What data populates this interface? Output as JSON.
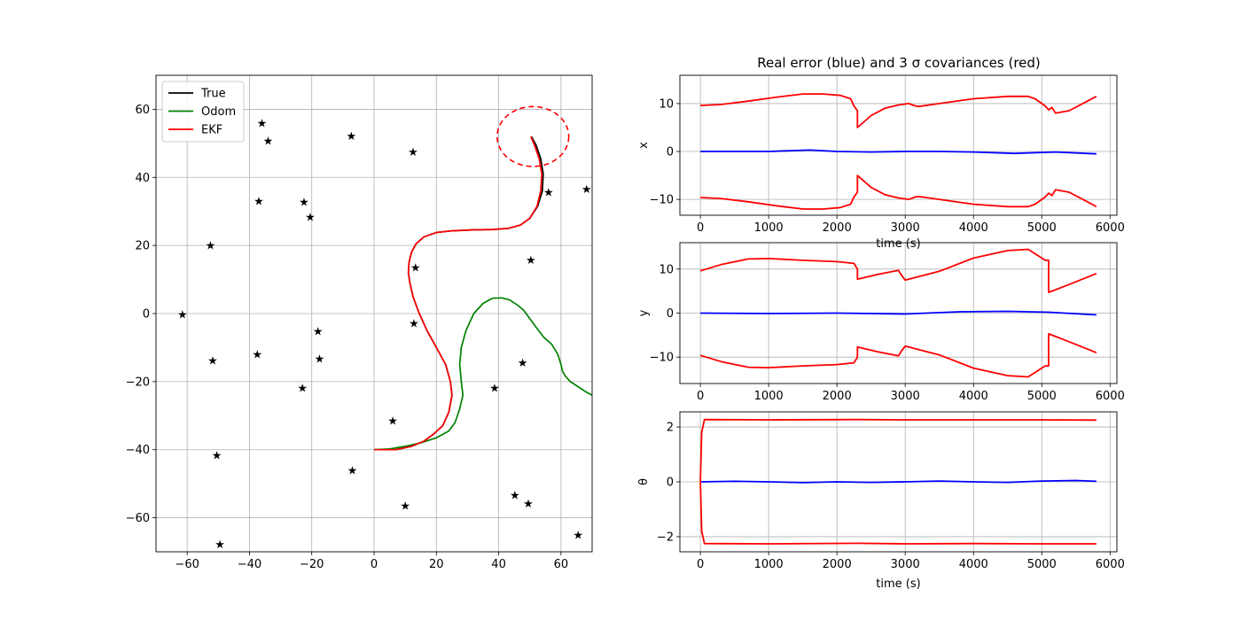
{
  "figure_title": "Real error (blue) and 3 σ covariances (red)",
  "colors": {
    "true": "#000000",
    "odom": "#008000",
    "ekf": "#ff0000",
    "error": "#0000ff",
    "landmark": "#000000",
    "grid": "#b0b0b0"
  },
  "chart_data": [
    {
      "type": "line",
      "panel": "map",
      "xlim": [
        -70,
        70
      ],
      "ylim": [
        -70,
        70
      ],
      "xticks": [
        "−60",
        "−40",
        "−20",
        "0",
        "20",
        "40",
        "60"
      ],
      "yticks": [
        "−60",
        "−40",
        "−20",
        "0",
        "20",
        "40",
        "60"
      ],
      "grid": true,
      "legend_position": "upper-left",
      "legend": [
        "True",
        "Odom",
        "EKF"
      ],
      "series": [
        {
          "name": "True",
          "color": "#000000",
          "x": [
            0,
            7,
            12,
            16,
            19,
            22,
            24,
            25,
            24.5,
            23,
            20,
            17,
            14.5,
            12.5,
            11.5,
            11,
            11.2,
            12,
            13.5,
            16,
            20,
            25,
            32,
            38,
            43,
            47,
            50,
            52.5,
            54,
            54.3,
            53.5,
            52,
            50.5
          ],
          "y": [
            -40,
            -40,
            -39,
            -37.5,
            -35.5,
            -33,
            -29,
            -24,
            -20,
            -15,
            -10,
            -5,
            0,
            5,
            9,
            12,
            15,
            18,
            20.5,
            22.5,
            23.8,
            24.3,
            24.6,
            24.7,
            25,
            26,
            28,
            31.5,
            36,
            41,
            45.5,
            49.5,
            52
          ]
        },
        {
          "name": "Odom",
          "color": "#008000",
          "x": [
            0,
            5,
            10,
            15,
            20,
            24,
            26,
            27.5,
            28.5,
            28,
            27.5,
            28,
            29.5,
            32,
            35,
            38,
            41,
            43.5,
            46,
            48,
            50,
            52,
            54.5,
            57,
            59,
            60,
            60.5,
            61.5,
            63,
            65.5,
            68,
            70
          ],
          "y": [
            -40,
            -39.8,
            -39,
            -38,
            -36.5,
            -34.5,
            -32,
            -28,
            -24,
            -20,
            -15,
            -10,
            -5,
            0,
            3,
            4.5,
            4.6,
            4,
            2.5,
            1,
            -1.5,
            -4,
            -7,
            -9,
            -12,
            -15,
            -17,
            -18.5,
            -20,
            -21.5,
            -23,
            -24
          ]
        },
        {
          "name": "EKF",
          "color": "#ff0000",
          "x": [
            0,
            7,
            12,
            16,
            19,
            22,
            24,
            25,
            24.5,
            23,
            20,
            17,
            14.5,
            12.5,
            11.5,
            11,
            11.2,
            12,
            13.5,
            16,
            20,
            25,
            32,
            38,
            43,
            47,
            50,
            52.3,
            53.5,
            53.8,
            53,
            51.5,
            50.3
          ],
          "y": [
            -40,
            -40,
            -39,
            -37.5,
            -35.5,
            -33,
            -29,
            -24,
            -20,
            -15,
            -10,
            -5,
            0,
            5,
            9,
            12,
            15,
            18,
            20.5,
            22.5,
            23.8,
            24.3,
            24.6,
            24.7,
            25,
            26,
            28,
            31.5,
            36,
            41,
            45.5,
            49.5,
            52
          ]
        }
      ],
      "ellipse": {
        "cx": 51,
        "cy": 52,
        "rx": 11.5,
        "ry": 8.8,
        "color": "#ff0000",
        "style": "dashed"
      },
      "landmarks": [
        [
          -61.5,
          -0.3
        ],
        [
          -52.5,
          20
        ],
        [
          -51.8,
          -13.8
        ],
        [
          -50.5,
          -41.7
        ],
        [
          -49.5,
          -67.8
        ],
        [
          -37.5,
          -12
        ],
        [
          -37,
          33
        ],
        [
          -36,
          56
        ],
        [
          -34,
          50.7
        ],
        [
          -22.5,
          32.8
        ],
        [
          -23,
          -21.8
        ],
        [
          -20.5,
          28.3
        ],
        [
          -18,
          -5.2
        ],
        [
          -17.5,
          -13.3
        ],
        [
          -7.3,
          52.2
        ],
        [
          -7,
          -46
        ],
        [
          6,
          -31.5
        ],
        [
          10,
          -56.5
        ],
        [
          12.5,
          47.5
        ],
        [
          12.8,
          -2.8
        ],
        [
          13.3,
          13.5
        ],
        [
          38.7,
          -21.8
        ],
        [
          45.2,
          -53.3
        ],
        [
          47.7,
          -14.5
        ],
        [
          49.5,
          -55.8
        ],
        [
          50.3,
          15.7
        ],
        [
          56,
          35.7
        ],
        [
          65.5,
          -65
        ],
        [
          68.2,
          36.5
        ]
      ]
    },
    {
      "type": "line",
      "panel": "x-error",
      "ylabel": "x",
      "xlabel": "time (s)",
      "xlim": [
        -300,
        6100
      ],
      "ylim": [
        -13.3,
        15.9
      ],
      "xticks": [
        "0",
        "1000",
        "2000",
        "3000",
        "4000",
        "5000",
        "6000"
      ],
      "yticks": [
        "−10",
        "0",
        "10"
      ],
      "grid": true,
      "series": [
        {
          "name": "error",
          "color": "#0000ff",
          "x": [
            0,
            1000,
            1600,
            2000,
            2500,
            3000,
            3500,
            4000,
            4600,
            5200,
            5800
          ],
          "y": [
            0,
            0,
            0.3,
            0,
            -0.1,
            0,
            0,
            -0.1,
            -0.4,
            -0.1,
            -0.5
          ]
        },
        {
          "name": "+3σ",
          "color": "#ff0000",
          "x": [
            0,
            300,
            700,
            1100,
            1500,
            1800,
            2050,
            2200,
            2250,
            2300,
            2300,
            2500,
            2700,
            2900,
            3050,
            3150,
            3200,
            3500,
            4000,
            4500,
            4800,
            4900,
            5000,
            5050,
            5100,
            5150,
            5200,
            5400,
            5600,
            5800
          ],
          "y": [
            9.6,
            9.8,
            10.5,
            11.3,
            12,
            12,
            11.7,
            11,
            9.5,
            8.5,
            5,
            7.5,
            9,
            9.7,
            10,
            9.5,
            9.4,
            10,
            11,
            11.5,
            11.5,
            11,
            10,
            9.5,
            8.7,
            9.2,
            8,
            8.5,
            10,
            11.5
          ]
        },
        {
          "name": "−3σ",
          "color": "#ff0000",
          "x": [
            0,
            300,
            700,
            1100,
            1500,
            1800,
            2050,
            2200,
            2250,
            2300,
            2300,
            2500,
            2700,
            2900,
            3050,
            3150,
            3200,
            3500,
            4000,
            4500,
            4800,
            4900,
            5000,
            5050,
            5100,
            5150,
            5200,
            5400,
            5600,
            5800
          ],
          "y": [
            -9.6,
            -9.8,
            -10.5,
            -11.3,
            -12,
            -12,
            -11.7,
            -11,
            -9.5,
            -8.5,
            -5,
            -7.5,
            -9,
            -9.7,
            -10,
            -9.5,
            -9.4,
            -10,
            -11,
            -11.5,
            -11.5,
            -11,
            -10,
            -9.5,
            -8.7,
            -9.2,
            -8,
            -8.5,
            -10,
            -11.5
          ]
        }
      ]
    },
    {
      "type": "line",
      "panel": "y-error",
      "ylabel": "y",
      "xlim": [
        -300,
        6100
      ],
      "ylim": [
        -16,
        16
      ],
      "xticks": [
        "0",
        "1000",
        "2000",
        "3000",
        "4000",
        "5000",
        "6000"
      ],
      "yticks": [
        "−10",
        "0",
        "10"
      ],
      "grid": true,
      "series": [
        {
          "name": "error",
          "color": "#0000ff",
          "x": [
            0,
            1000,
            2000,
            3000,
            3800,
            4500,
            5100,
            5800
          ],
          "y": [
            0,
            -0.1,
            0,
            -0.2,
            0.3,
            0.4,
            0.2,
            -0.4
          ]
        },
        {
          "name": "+3σ",
          "color": "#ff0000",
          "x": [
            0,
            300,
            700,
            1000,
            1500,
            2000,
            2250,
            2300,
            2300,
            2600,
            2900,
            2950,
            3000,
            3500,
            4000,
            4500,
            4800,
            5000,
            5050,
            5100,
            5100,
            5400,
            5800
          ],
          "y": [
            9.6,
            11,
            12.3,
            12.4,
            12,
            11.7,
            11.3,
            10,
            7.7,
            8.8,
            9.7,
            8.5,
            7.5,
            9.5,
            12.5,
            14.2,
            14.5,
            12.5,
            12,
            12,
            4.7,
            6.5,
            9
          ]
        },
        {
          "name": "−3σ",
          "color": "#ff0000",
          "x": [
            0,
            300,
            700,
            1000,
            1500,
            2000,
            2250,
            2300,
            2300,
            2600,
            2900,
            2950,
            3000,
            3500,
            4000,
            4500,
            4800,
            5000,
            5050,
            5100,
            5100,
            5400,
            5800
          ],
          "y": [
            -9.6,
            -11,
            -12.3,
            -12.4,
            -12,
            -11.7,
            -11.3,
            -10,
            -7.7,
            -8.8,
            -9.7,
            -8.5,
            -7.5,
            -9.5,
            -12.5,
            -14.2,
            -14.5,
            -12.5,
            -12,
            -12,
            -4.7,
            -6.5,
            -9
          ]
        }
      ]
    },
    {
      "type": "line",
      "panel": "theta-error",
      "ylabel": "θ",
      "xlabel": "time (s)",
      "xlim": [
        -300,
        6100
      ],
      "ylim": [
        -2.55,
        2.55
      ],
      "xticks": [
        "0",
        "1000",
        "2000",
        "3000",
        "4000",
        "5000",
        "6000"
      ],
      "yticks": [
        "−2",
        "0",
        "2"
      ],
      "grid": true,
      "series": [
        {
          "name": "error",
          "color": "#0000ff",
          "x": [
            0,
            500,
            1000,
            1500,
            2000,
            2500,
            3000,
            3500,
            4000,
            4500,
            5000,
            5500,
            5800
          ],
          "y": [
            0,
            0.02,
            0,
            -0.03,
            0,
            -0.02,
            0,
            0.03,
            0,
            -0.02,
            0.03,
            0.05,
            0.02
          ]
        },
        {
          "name": "+3σ",
          "color": "#ff0000",
          "x": [
            0,
            20,
            60,
            1000,
            2300,
            3000,
            4000,
            5000,
            5800
          ],
          "y": [
            0,
            1.8,
            2.27,
            2.26,
            2.27,
            2.26,
            2.26,
            2.26,
            2.25
          ]
        },
        {
          "name": "−3σ",
          "color": "#ff0000",
          "x": [
            0,
            20,
            60,
            1000,
            2300,
            3000,
            4000,
            5000,
            5800
          ],
          "y": [
            0,
            -1.8,
            -2.25,
            -2.26,
            -2.24,
            -2.26,
            -2.25,
            -2.26,
            -2.26
          ]
        }
      ]
    }
  ]
}
